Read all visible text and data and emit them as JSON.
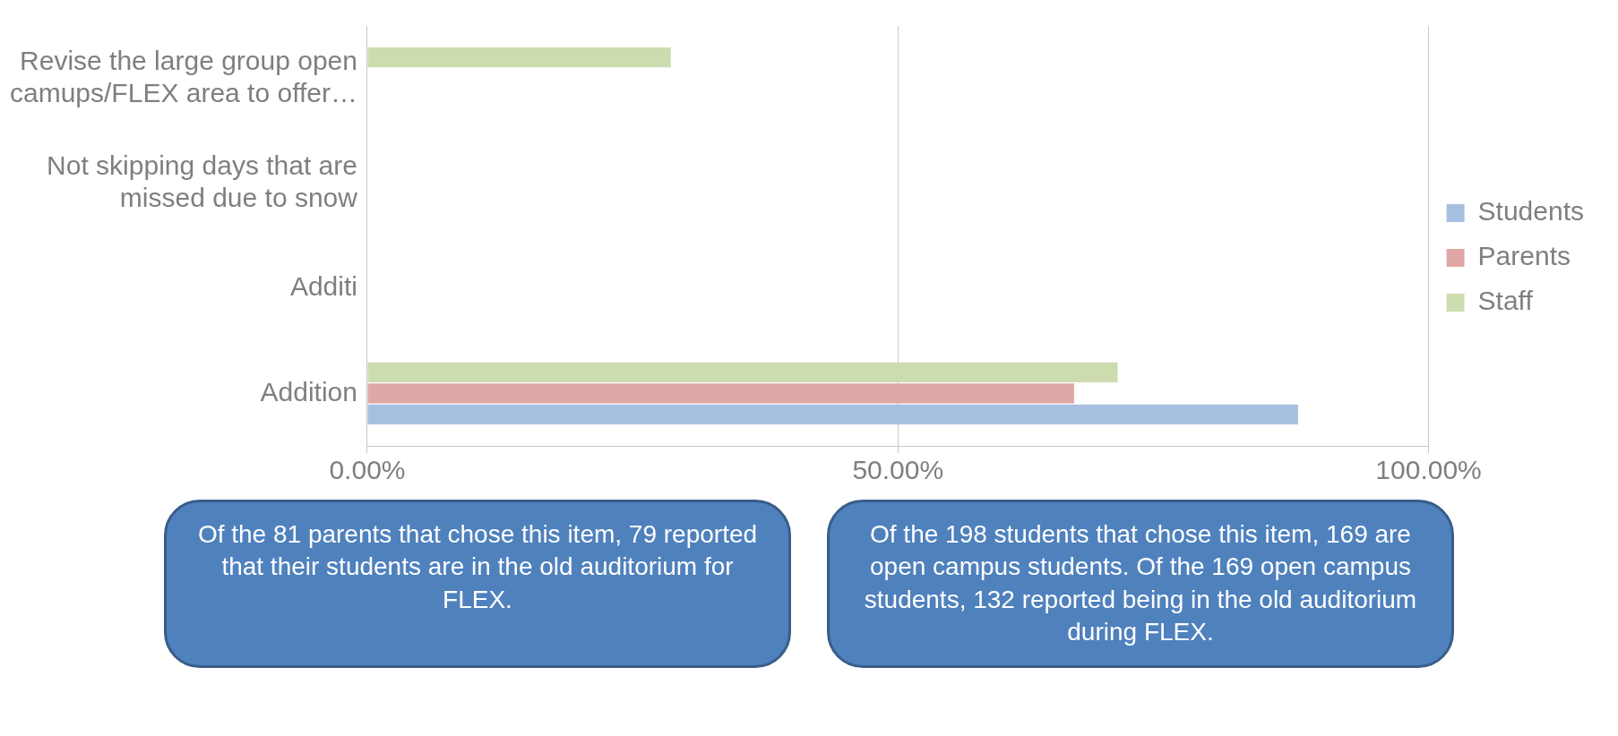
{
  "chart_data": {
    "type": "bar",
    "orientation": "horizontal",
    "categories": [
      "Revise the large group open camups/FLEX area to offer…",
      "Not skipping days that are missed due to snow",
      "Additi",
      "Addition"
    ],
    "series": [
      {
        "name": "Students",
        "color": "#a7bfdf",
        "values": [
          null,
          null,
          null,
          87.7
        ]
      },
      {
        "name": "Parents",
        "color": "#dfa7a6",
        "values": [
          null,
          null,
          null,
          66.6
        ]
      },
      {
        "name": "Staff",
        "color": "#cddcaf",
        "values": [
          28.6,
          null,
          null,
          70.7
        ]
      }
    ],
    "xlim": [
      0,
      100
    ],
    "xticks": [
      {
        "value": 0,
        "label": "0.00%"
      },
      {
        "value": 50,
        "label": "50.00%"
      },
      {
        "value": 100,
        "label": "100.00%"
      }
    ],
    "grid": "x",
    "legend": "right",
    "annotations": [
      "Of the 81 parents that chose this item, 79 reported that their students are in the old auditorium for FLEX.",
      "Of the 198 students that chose this item, 169 are open campus students.  Of the 169 open campus students, 132 reported being in the old auditorium during FLEX."
    ]
  }
}
